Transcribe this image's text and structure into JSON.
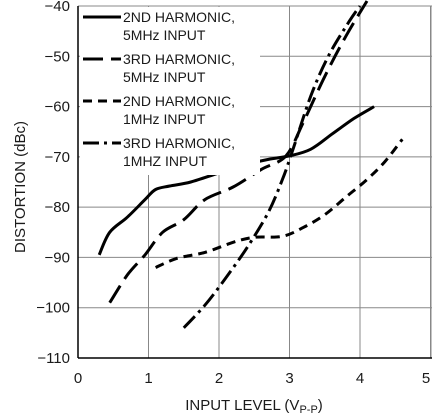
{
  "chart_data": {
    "type": "line",
    "xlabel": "INPUT LEVEL (V",
    "xlabel_sub": "P-P",
    "xlabel_close": ")",
    "ylabel": "DISTORTION (dBc)",
    "xlim": [
      0,
      5
    ],
    "ylim": [
      -110,
      -40
    ],
    "x_ticks": [
      0,
      1,
      2,
      3,
      4,
      5
    ],
    "y_ticks": [
      -40,
      -50,
      -60,
      -70,
      -80,
      -90,
      -100,
      -110
    ],
    "x_tick_labels": [
      "0",
      "1",
      "2",
      "3",
      "4",
      "5"
    ],
    "y_tick_labels": [
      "−40",
      "−50",
      "−60",
      "−70",
      "−80",
      "−90",
      "−100",
      "−110"
    ],
    "grid": true,
    "legend_position": "top-left",
    "series": [
      {
        "name": [
          "2ND HARMONIC,",
          "5MHz INPUT"
        ],
        "dash": "solid",
        "x": [
          0.3,
          0.45,
          0.7,
          0.95,
          1.1,
          1.3,
          1.6,
          2.0,
          2.4,
          2.7,
          3.0,
          3.3,
          3.6,
          3.9,
          4.2
        ],
        "y": [
          -89.5,
          -85.0,
          -82.0,
          -78.5,
          -76.5,
          -75.8,
          -75.0,
          -73.2,
          -71.5,
          -70.5,
          -69.8,
          -68.5,
          -65.5,
          -62.5,
          -60.0
        ]
      },
      {
        "name": [
          "3RD HARMONIC,",
          "5MHz INPUT"
        ],
        "dash": "long-dash",
        "x": [
          0.45,
          0.7,
          0.95,
          1.2,
          1.5,
          1.8,
          2.2,
          2.6,
          2.95,
          3.2,
          3.5,
          3.8,
          4.1
        ],
        "y": [
          -99.0,
          -93.5,
          -89.5,
          -85.0,
          -82.5,
          -78.5,
          -76.0,
          -72.5,
          -69.8,
          -63.0,
          -54.0,
          -46.0,
          -39.0
        ]
      },
      {
        "name": [
          "2ND HARMONIC,",
          "1MHz INPUT"
        ],
        "dash": "short-dash",
        "x": [
          1.1,
          1.4,
          1.8,
          2.2,
          2.5,
          2.9,
          3.2,
          3.5,
          3.8,
          4.1,
          4.35,
          4.6
        ],
        "y": [
          -92.0,
          -90.2,
          -89.0,
          -87.0,
          -86.0,
          -85.8,
          -84.0,
          -81.5,
          -78.0,
          -74.5,
          -71.0,
          -66.5
        ]
      },
      {
        "name": [
          "3RD HARMONIC,",
          "1MHZ INPUT"
        ],
        "dash": "dash-dot",
        "x": [
          1.5,
          1.8,
          2.1,
          2.4,
          2.7,
          2.9,
          3.05,
          3.3,
          3.55,
          3.85,
          4.0
        ],
        "y": [
          -104.0,
          -99.5,
          -94.0,
          -88.0,
          -81.0,
          -74.5,
          -68.5,
          -58.0,
          -50.0,
          -43.0,
          -40.0
        ]
      }
    ]
  }
}
